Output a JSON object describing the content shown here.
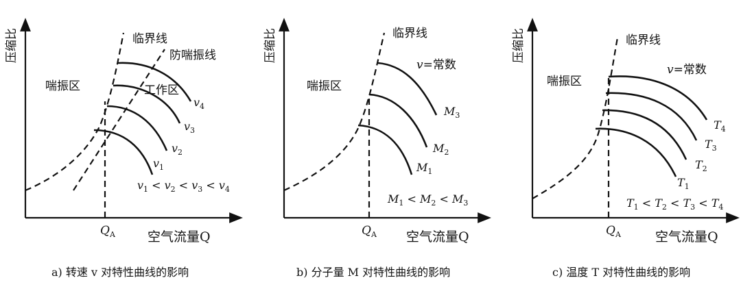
{
  "panels": [
    {
      "y_label": "压缩比",
      "x_label": "空气流量Q",
      "qa_label": "QA",
      "critical_line": "临界线",
      "anti_surge_line": "防喘振线",
      "surge_zone": "喘振区",
      "work_zone": "工作区",
      "curve_labels": [
        "v4",
        "v3",
        "v2",
        "v1"
      ],
      "relation": "v1 < v2 < v3 < v4",
      "caption": "a) 转速 v 对特性曲线的影响"
    },
    {
      "y_label": "压缩比",
      "x_label": "空气流量Q",
      "qa_label": "QA",
      "critical_line": "临界线",
      "surge_zone": "喘振区",
      "constant_note": "v=常数",
      "curve_labels": [
        "M3",
        "M2",
        "M1"
      ],
      "relation": "M1 < M2 < M3",
      "caption": "b) 分子量 M 对特性曲线的影响"
    },
    {
      "y_label": "压缩比",
      "x_label": "空气流量Q",
      "qa_label": "QA",
      "critical_line": "临界线",
      "surge_zone": "喘振区",
      "constant_note": "v=常数",
      "curve_labels": [
        "T4",
        "T3",
        "T2",
        "T1"
      ],
      "relation": "T1 < T2 < T3 < T4",
      "caption": "c) 温度 T 对特性曲线的影响"
    }
  ]
}
